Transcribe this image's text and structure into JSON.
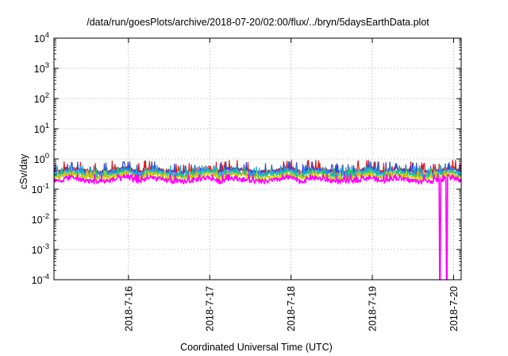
{
  "chart_data": {
    "type": "line",
    "title": "/data/run/goesPlots/archive/2018-07-20/02:00/flux/../bryn/5daysEarthData.plot",
    "xlabel": "Coordinated Universal Time (UTC)",
    "ylabel": "cSv/day",
    "yscale": "log",
    "ylim": [
      0.0001,
      10000
    ],
    "xlim": [
      "2018-07-15 02:00",
      "2018-07-20 02:15"
    ],
    "x_ticks": [
      "2018-7-16",
      "2018-7-17",
      "2018-7-18",
      "2018-7-19",
      "2018-7-20"
    ],
    "y_ticks": [
      {
        "base": "10",
        "exp": "-4"
      },
      {
        "base": "10",
        "exp": "-3"
      },
      {
        "base": "10",
        "exp": "-2"
      },
      {
        "base": "10",
        "exp": "-1"
      },
      {
        "base": "10",
        "exp": "0"
      },
      {
        "base": "10",
        "exp": "1"
      },
      {
        "base": "10",
        "exp": "2"
      },
      {
        "base": "10",
        "exp": "3"
      },
      {
        "base": "10",
        "exp": "4"
      }
    ],
    "grid": true,
    "legend": "none",
    "series": [
      {
        "color": "#e41a1c",
        "base": 0.45,
        "approx_range": [
          0.25,
          0.9
        ]
      },
      {
        "color": "#2f4bd9",
        "base": 0.42,
        "approx_range": [
          0.22,
          0.8
        ]
      },
      {
        "color": "#17a9e0",
        "base": 0.37,
        "approx_range": [
          0.22,
          0.6
        ]
      },
      {
        "color": "#25c47a",
        "base": 0.33,
        "approx_range": [
          0.2,
          0.5
        ]
      },
      {
        "color": "#e0c000",
        "base": 0.29,
        "approx_range": [
          0.18,
          0.4
        ]
      },
      {
        "color": "#ff00ff",
        "base": 0.22,
        "approx_range": [
          0.08,
          0.3
        ]
      }
    ],
    "dropouts": [
      {
        "time": "2018-07-19 20:00",
        "value": 0.0001
      },
      {
        "time": "2018-07-19 22:00",
        "value": 0.0001
      }
    ]
  }
}
